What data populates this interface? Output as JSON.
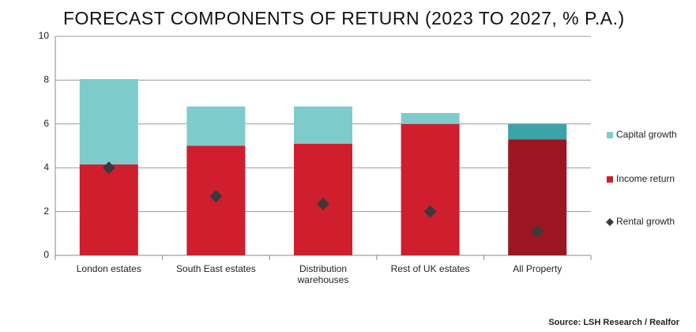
{
  "chart_data": {
    "type": "stacked_bar",
    "title": "FORECAST COMPONENTS OF RETURN (2023 TO 2027, % P.A.)",
    "source": "Source: LSH Research / Realfor",
    "categories": [
      "London estates",
      "South East estates",
      "Distribution warehouses",
      "Rest of UK estates",
      "All Property"
    ],
    "series": [
      {
        "name": "Income return",
        "color": "#cf1e2e",
        "colors": [
          "#cf1e2e",
          "#cf1e2e",
          "#cf1e2e",
          "#cf1e2e",
          "#9c1622"
        ],
        "values": [
          4.15,
          5.0,
          5.1,
          6.0,
          5.3
        ]
      },
      {
        "name": "Capital growth",
        "color": "#7ecbcc",
        "colors": [
          "#7ecbcc",
          "#7ecbcc",
          "#7ecbcc",
          "#7ecbcc",
          "#3aa4a6"
        ],
        "values": [
          3.9,
          1.8,
          1.7,
          0.5,
          0.7
        ]
      },
      {
        "name": "Rental growth",
        "type": "marker",
        "color": "#3a3a3a",
        "values": [
          4.0,
          2.7,
          2.35,
          2.0,
          1.1
        ]
      }
    ],
    "legend_order": [
      1,
      0,
      2
    ],
    "ylim": [
      0,
      10
    ],
    "yticks": [
      0,
      2,
      4,
      6,
      8,
      10
    ],
    "grid": true,
    "legend": "right"
  }
}
